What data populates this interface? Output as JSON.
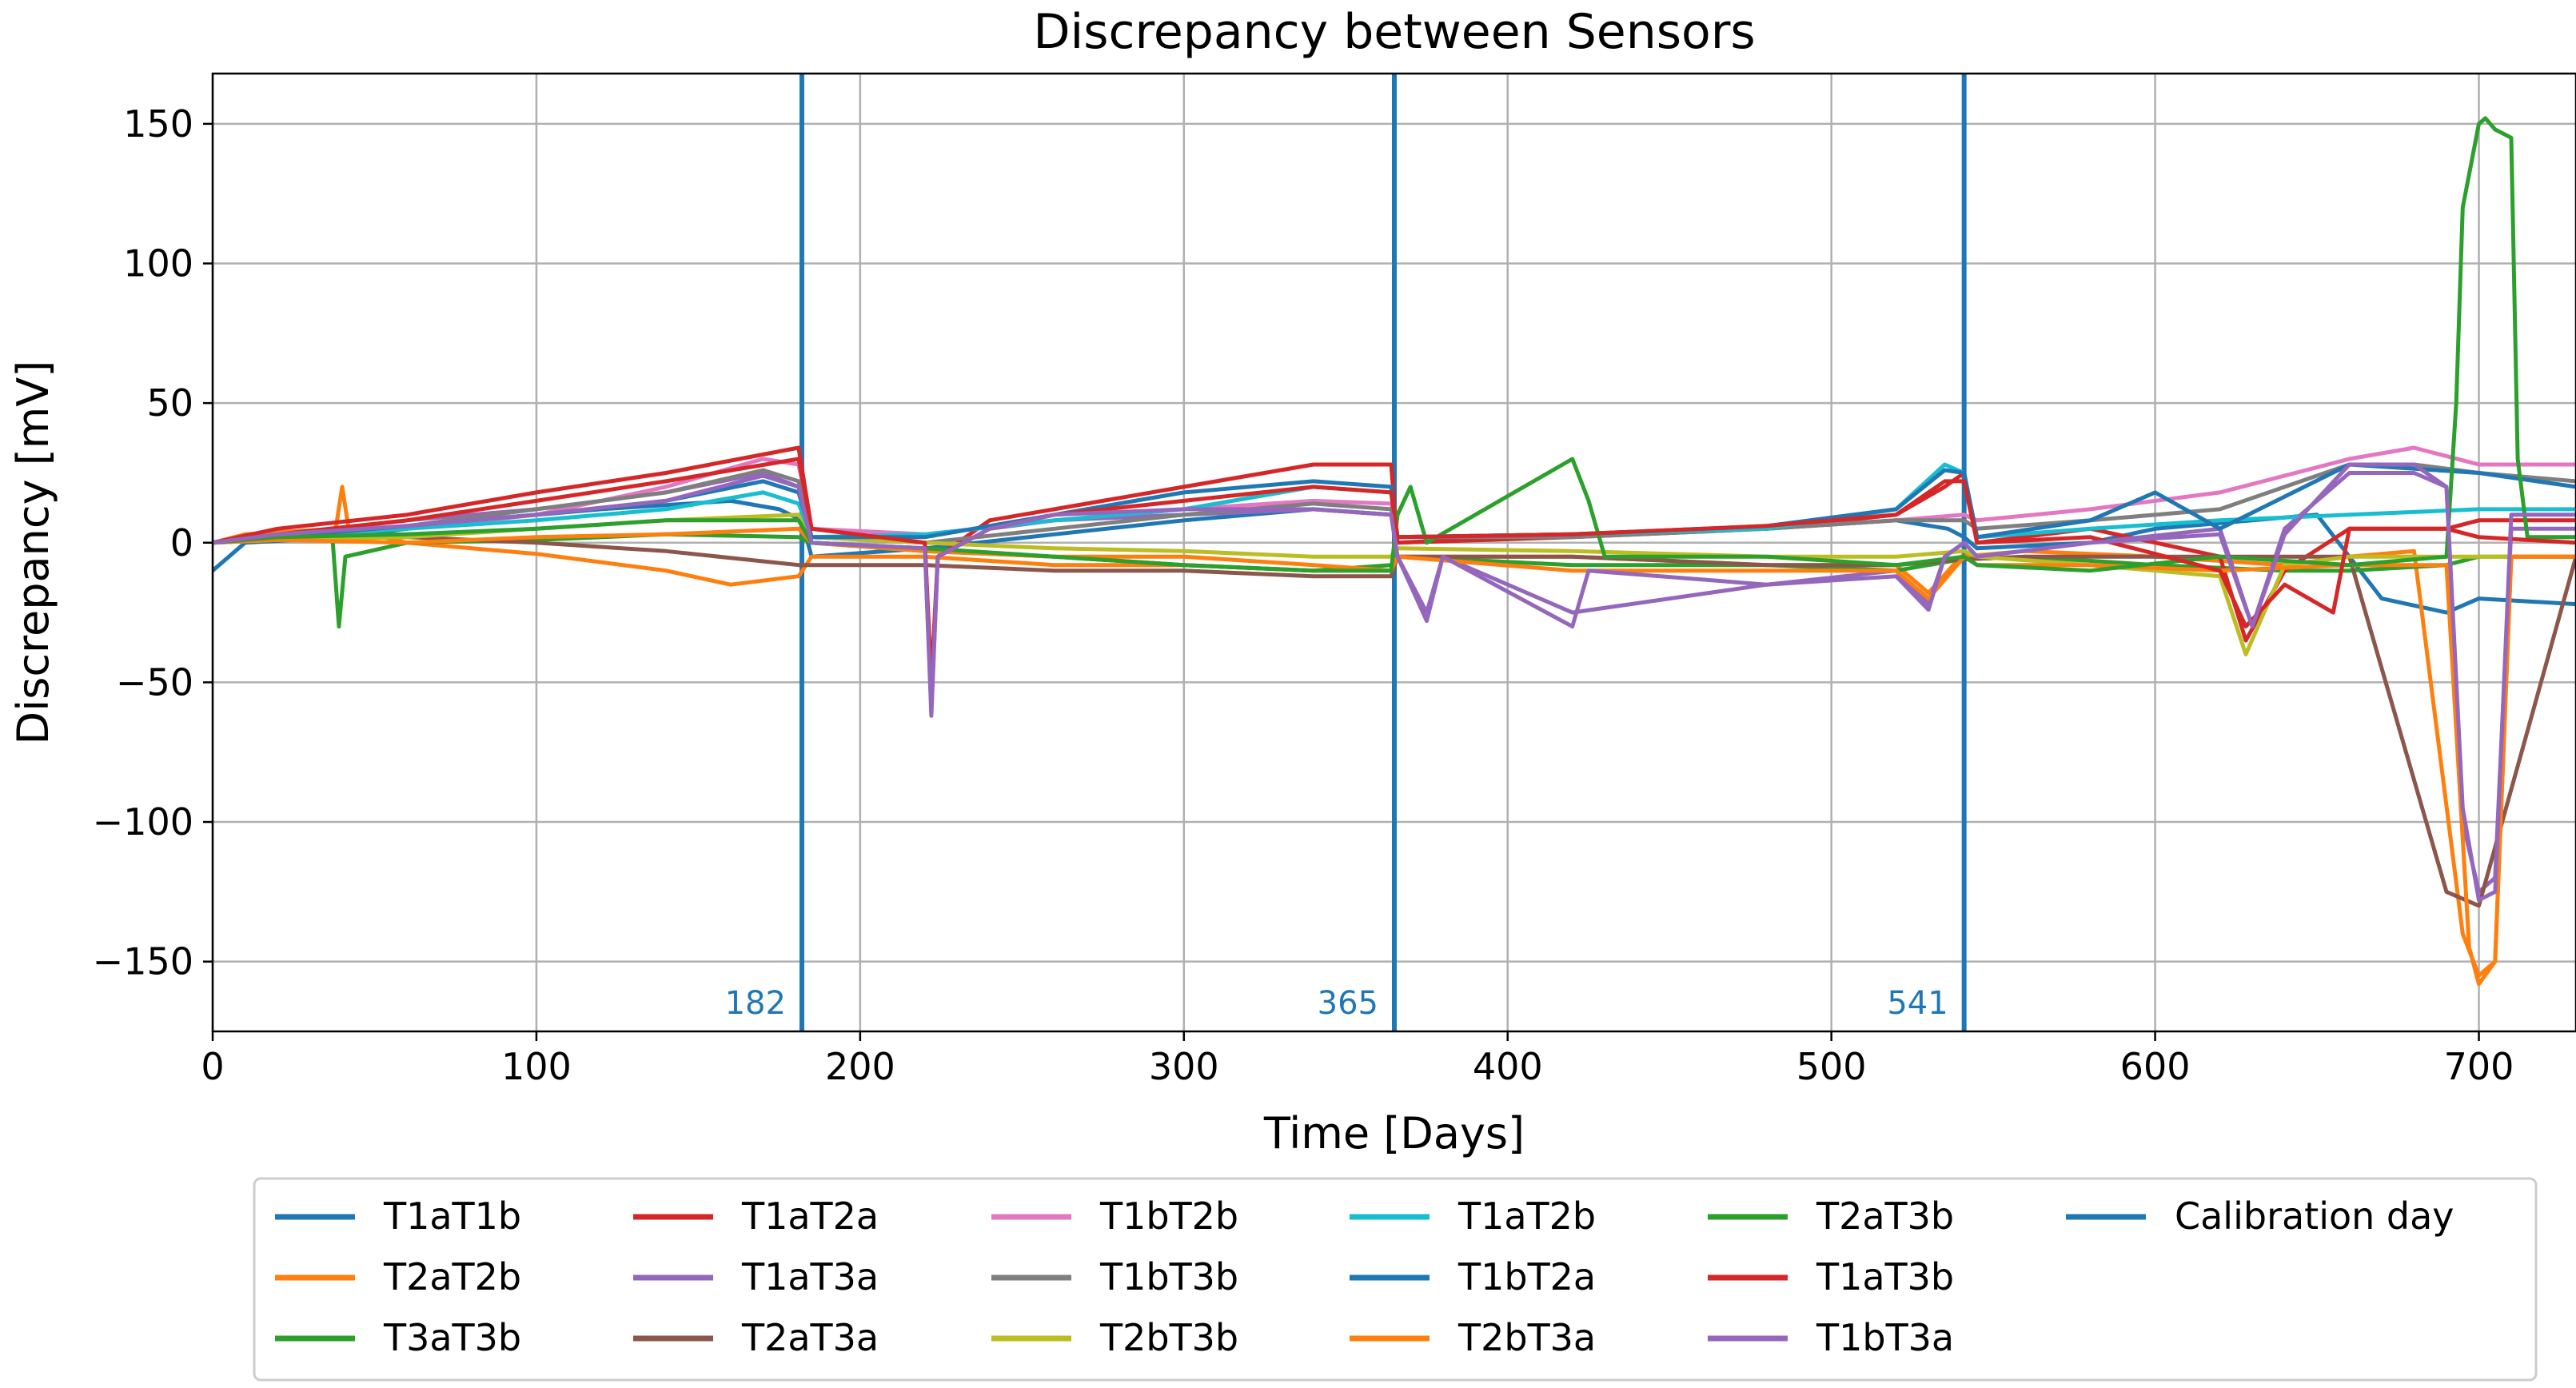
{
  "chart_data": {
    "type": "line",
    "title": "Discrepancy between Sensors",
    "xlabel": "Time [Days]",
    "ylabel": "Discrepancy [mV]",
    "xlim": [
      0,
      730
    ],
    "ylim": [
      -175,
      168
    ],
    "grid": true,
    "legend_position": "bottom-center",
    "legend_columns": 6,
    "x_ticks": [
      0,
      100,
      200,
      300,
      400,
      500,
      600,
      700
    ],
    "x_tick_labels": [
      "0",
      "100",
      "200",
      "300",
      "400",
      "500",
      "600",
      "700"
    ],
    "y_ticks": [
      150,
      100,
      50,
      0,
      -50,
      -100,
      -150
    ],
    "y_tick_labels": [
      "150",
      "100",
      "50",
      "0",
      "−50",
      "−100",
      "−150"
    ],
    "calibration_days": [
      {
        "x": 182,
        "label": "182"
      },
      {
        "x": 365,
        "label": "365"
      },
      {
        "x": 541,
        "label": "541"
      }
    ],
    "calibration_legend_label": "Calibration day",
    "calibration_color": "#1f77b4",
    "series": [
      {
        "name": "T1aT1b",
        "color": "#1f77b4",
        "x": [
          0,
          10,
          40,
          80,
          120,
          160,
          175,
          182,
          185,
          220,
          260,
          300,
          340,
          364,
          366,
          420,
          480,
          520,
          536,
          541,
          545,
          580,
          600,
          650,
          670,
          690,
          700,
          730
        ],
        "y": [
          -10,
          0,
          2,
          8,
          12,
          15,
          12,
          8,
          -5,
          -2,
          3,
          8,
          12,
          10,
          0,
          3,
          5,
          8,
          5,
          2,
          -2,
          0,
          5,
          10,
          -20,
          -25,
          -20,
          -22
        ]
      },
      {
        "name": "T2aT2b",
        "color": "#ff7f0e",
        "x": [
          0,
          10,
          38,
          40,
          42,
          60,
          100,
          140,
          160,
          181,
          185,
          220,
          260,
          300,
          340,
          364,
          366,
          420,
          480,
          520,
          530,
          540,
          560,
          600,
          640,
          660,
          680,
          695,
          700,
          705,
          710,
          730
        ],
        "y": [
          0,
          3,
          5,
          20,
          5,
          0,
          -4,
          -10,
          -15,
          -12,
          -5,
          -5,
          -8,
          -8,
          -10,
          -10,
          -5,
          -5,
          -8,
          -8,
          -18,
          -5,
          -3,
          -5,
          -8,
          -5,
          -3,
          -140,
          -155,
          -150,
          -5,
          -5
        ]
      },
      {
        "name": "T3aT3b",
        "color": "#2ca02c",
        "x": [
          0,
          10,
          37,
          39,
          41,
          60,
          100,
          140,
          181,
          185,
          220,
          260,
          300,
          340,
          364,
          366,
          420,
          480,
          520,
          540,
          560,
          600,
          640,
          660,
          690,
          700,
          710,
          730
        ],
        "y": [
          0,
          1,
          2,
          -30,
          -5,
          0,
          1,
          3,
          2,
          0,
          -3,
          -5,
          -8,
          -10,
          -8,
          -5,
          -8,
          -8,
          -10,
          -6,
          -5,
          -8,
          -10,
          -10,
          -8,
          -5,
          -5,
          -5
        ]
      },
      {
        "name": "T1aT2a",
        "color": "#d62728",
        "x": [
          0,
          20,
          60,
          100,
          140,
          181,
          185,
          220,
          222,
          224,
          240,
          260,
          300,
          340,
          364,
          366,
          420,
          480,
          520,
          535,
          541,
          545,
          580,
          620,
          628,
          640,
          660,
          690,
          700,
          730
        ],
        "y": [
          0,
          5,
          10,
          18,
          25,
          34,
          5,
          0,
          -55,
          -5,
          8,
          12,
          20,
          28,
          28,
          0,
          2,
          5,
          10,
          20,
          25,
          0,
          5,
          -5,
          -35,
          -10,
          5,
          5,
          8,
          8
        ]
      },
      {
        "name": "T1aT3a",
        "color": "#9467bd",
        "x": [
          0,
          30,
          60,
          100,
          140,
          170,
          181,
          185,
          220,
          222,
          224,
          240,
          260,
          300,
          340,
          364,
          366,
          375,
          380,
          420,
          480,
          520,
          530,
          535,
          541,
          545,
          580,
          620,
          630,
          640,
          660,
          680,
          690,
          695,
          700,
          705,
          710,
          730
        ],
        "y": [
          0,
          4,
          8,
          12,
          18,
          25,
          20,
          0,
          -2,
          -60,
          -5,
          5,
          8,
          10,
          12,
          10,
          -5,
          -25,
          -5,
          -25,
          -15,
          -10,
          -22,
          -5,
          0,
          -5,
          0,
          5,
          -30,
          5,
          25,
          25,
          20,
          -100,
          -125,
          -120,
          5,
          5
        ]
      },
      {
        "name": "T2aT3a",
        "color": "#8c564b",
        "x": [
          0,
          20,
          60,
          100,
          140,
          181,
          185,
          220,
          260,
          300,
          340,
          364,
          366,
          420,
          480,
          520,
          540,
          560,
          600,
          640,
          660,
          690,
          700,
          730
        ],
        "y": [
          0,
          1,
          2,
          0,
          -3,
          -8,
          -8,
          -8,
          -10,
          -10,
          -12,
          -12,
          -5,
          -5,
          -8,
          -8,
          -6,
          -5,
          -5,
          -5,
          -5,
          -125,
          -130,
          -5
        ]
      },
      {
        "name": "T1bT2b",
        "color": "#e377c2",
        "x": [
          0,
          20,
          60,
          100,
          140,
          170,
          181,
          185,
          220,
          260,
          300,
          340,
          364,
          366,
          420,
          480,
          520,
          541,
          545,
          580,
          620,
          660,
          680,
          700,
          730
        ],
        "y": [
          0,
          2,
          5,
          10,
          20,
          30,
          28,
          5,
          3,
          8,
          12,
          15,
          14,
          2,
          3,
          5,
          8,
          10,
          8,
          12,
          18,
          30,
          34,
          28,
          28
        ]
      },
      {
        "name": "T1bT3b",
        "color": "#7f7f7f",
        "x": [
          0,
          20,
          60,
          100,
          140,
          170,
          181,
          185,
          220,
          260,
          300,
          340,
          364,
          366,
          420,
          480,
          520,
          541,
          545,
          580,
          620,
          660,
          680,
          700,
          730
        ],
        "y": [
          0,
          2,
          6,
          12,
          18,
          26,
          22,
          2,
          0,
          5,
          10,
          14,
          12,
          2,
          2,
          5,
          8,
          8,
          5,
          8,
          12,
          28,
          28,
          25,
          22
        ]
      },
      {
        "name": "T2bT3b",
        "color": "#bcbd22",
        "x": [
          0,
          20,
          60,
          100,
          140,
          181,
          185,
          220,
          260,
          300,
          340,
          364,
          366,
          420,
          480,
          520,
          541,
          545,
          580,
          620,
          628,
          640,
          660,
          690,
          700,
          730
        ],
        "y": [
          0,
          1,
          2,
          5,
          8,
          10,
          2,
          0,
          -2,
          -3,
          -5,
          -5,
          -2,
          -3,
          -5,
          -5,
          -3,
          -5,
          -8,
          -12,
          -40,
          -8,
          -5,
          -5,
          -5,
          -5
        ]
      },
      {
        "name": "T1aT2b",
        "color": "#17becf",
        "x": [
          0,
          20,
          60,
          100,
          140,
          170,
          181,
          185,
          220,
          260,
          300,
          340,
          364,
          366,
          420,
          480,
          520,
          535,
          541,
          545,
          580,
          620,
          660,
          700,
          730
        ],
        "y": [
          0,
          2,
          5,
          8,
          12,
          18,
          14,
          2,
          3,
          8,
          12,
          20,
          18,
          2,
          3,
          5,
          12,
          28,
          25,
          2,
          5,
          8,
          10,
          12,
          12
        ]
      },
      {
        "name": "T1bT2a",
        "color": "#1f77b4",
        "x": [
          0,
          20,
          60,
          100,
          140,
          170,
          181,
          185,
          220,
          260,
          300,
          340,
          364,
          366,
          420,
          480,
          520,
          535,
          541,
          545,
          580,
          600,
          620,
          660,
          700,
          730
        ],
        "y": [
          0,
          2,
          6,
          10,
          15,
          22,
          18,
          2,
          2,
          10,
          18,
          22,
          20,
          2,
          3,
          6,
          12,
          26,
          25,
          2,
          8,
          18,
          5,
          28,
          25,
          20
        ]
      },
      {
        "name": "T2bT3a",
        "color": "#ff7f0e",
        "x": [
          0,
          20,
          60,
          100,
          140,
          181,
          185,
          220,
          260,
          300,
          340,
          364,
          366,
          420,
          480,
          520,
          530,
          541,
          545,
          580,
          620,
          660,
          690,
          697,
          700,
          705,
          710,
          730
        ],
        "y": [
          0,
          1,
          0,
          2,
          3,
          5,
          0,
          -3,
          -5,
          -5,
          -8,
          -10,
          -5,
          -10,
          -10,
          -10,
          -20,
          -5,
          -8,
          -8,
          -10,
          -8,
          -8,
          -145,
          -158,
          -150,
          -5,
          -5
        ]
      },
      {
        "name": "T2aT3b",
        "color": "#2ca02c",
        "x": [
          0,
          20,
          60,
          100,
          140,
          181,
          185,
          220,
          260,
          300,
          340,
          364,
          366,
          370,
          375,
          420,
          425,
          430,
          480,
          520,
          541,
          545,
          580,
          620,
          660,
          690,
          693,
          695,
          700,
          702,
          705,
          710,
          712,
          715,
          730
        ],
        "y": [
          0,
          2,
          3,
          5,
          8,
          8,
          0,
          -2,
          -5,
          -8,
          -10,
          -10,
          10,
          20,
          0,
          30,
          15,
          -5,
          -5,
          -8,
          -5,
          -8,
          -10,
          -5,
          -8,
          -5,
          50,
          120,
          150,
          152,
          148,
          145,
          30,
          2,
          2
        ]
      },
      {
        "name": "T1aT3b",
        "color": "#d62728",
        "x": [
          0,
          20,
          60,
          100,
          140,
          181,
          185,
          220,
          222,
          224,
          240,
          260,
          300,
          340,
          364,
          366,
          420,
          480,
          520,
          535,
          541,
          545,
          580,
          620,
          628,
          640,
          655,
          660,
          690,
          700,
          730
        ],
        "y": [
          0,
          3,
          8,
          15,
          22,
          30,
          5,
          0,
          -50,
          -5,
          5,
          10,
          15,
          20,
          18,
          2,
          3,
          6,
          10,
          22,
          22,
          0,
          2,
          -10,
          -30,
          -15,
          -25,
          5,
          5,
          2,
          0
        ]
      },
      {
        "name": "T1bT3a",
        "color": "#9467bd",
        "x": [
          0,
          20,
          60,
          100,
          140,
          170,
          181,
          185,
          220,
          222,
          224,
          240,
          260,
          300,
          340,
          364,
          366,
          375,
          380,
          420,
          425,
          480,
          520,
          530,
          535,
          541,
          545,
          580,
          620,
          630,
          640,
          660,
          680,
          690,
          695,
          700,
          705,
          710,
          730
        ],
        "y": [
          0,
          3,
          6,
          10,
          15,
          24,
          20,
          0,
          -2,
          -62,
          -5,
          5,
          10,
          12,
          12,
          10,
          -5,
          -28,
          -5,
          -30,
          -10,
          -15,
          -12,
          -24,
          -5,
          0,
          -5,
          0,
          3,
          -30,
          3,
          28,
          28,
          20,
          -95,
          -128,
          -125,
          10,
          10
        ]
      }
    ]
  }
}
